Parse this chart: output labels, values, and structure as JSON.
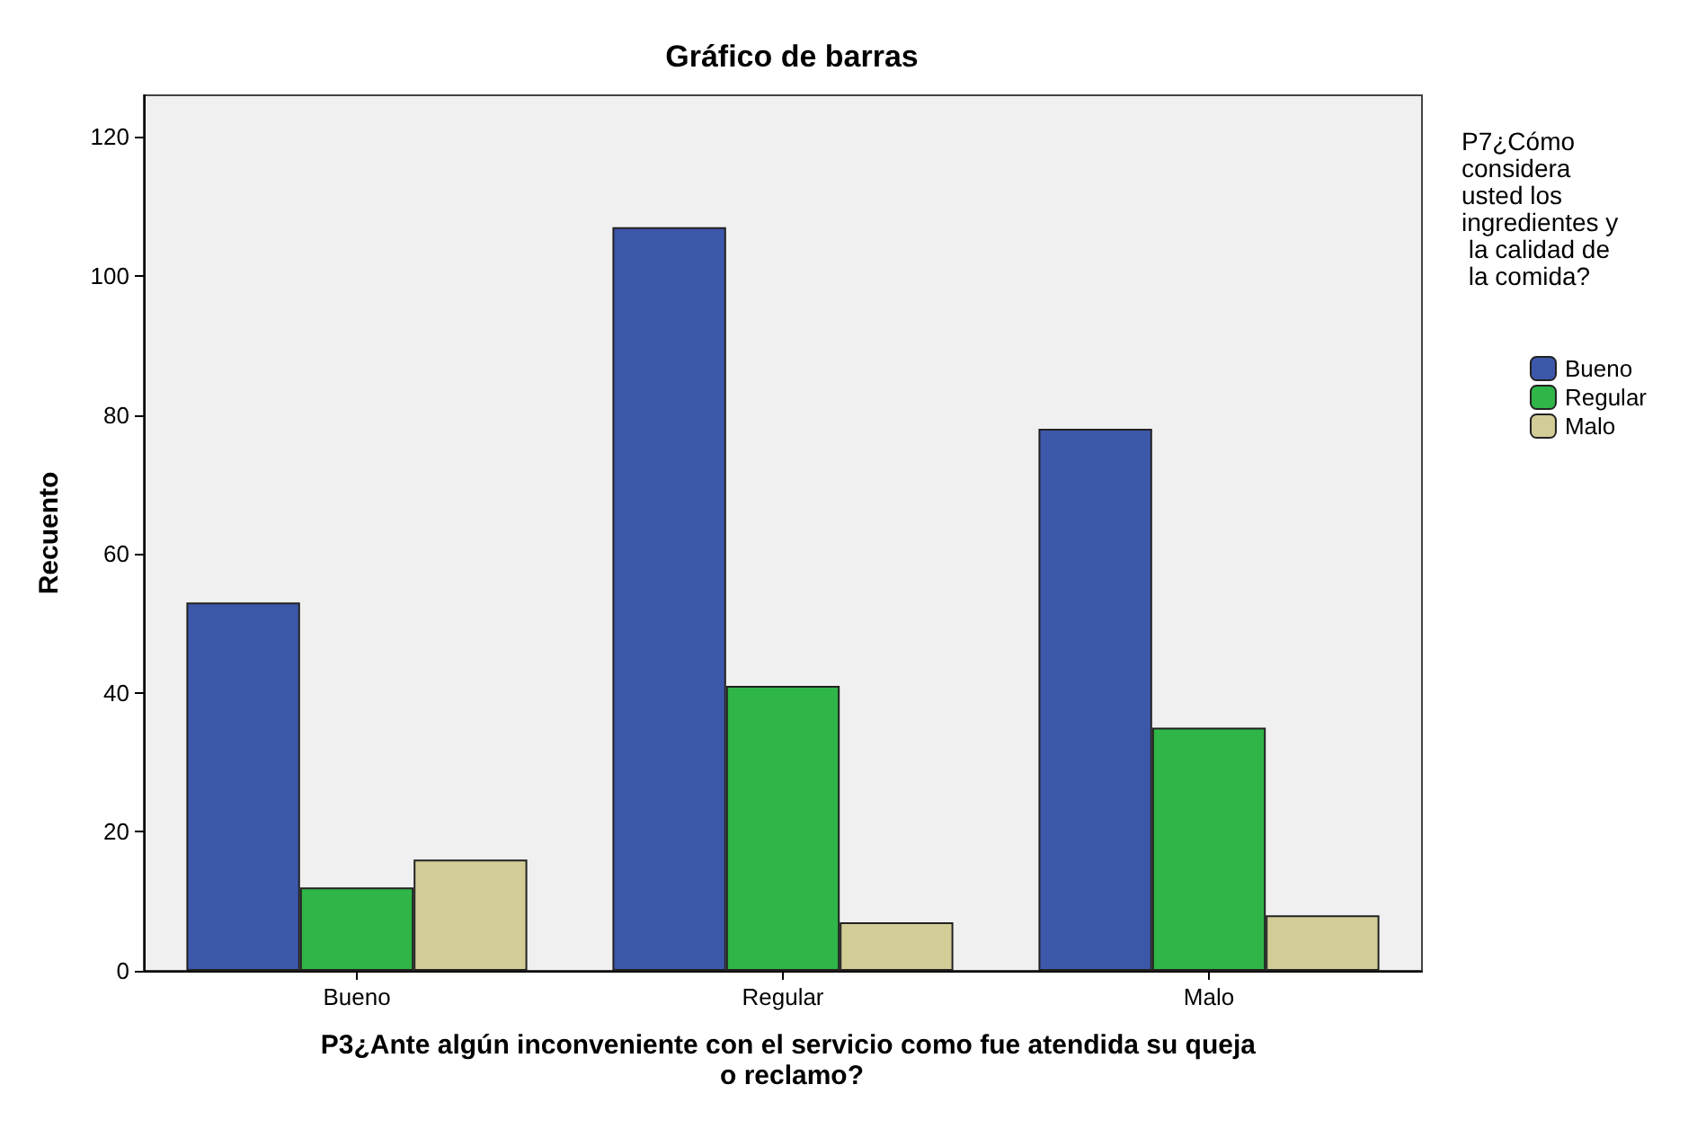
{
  "chart_data": {
    "type": "bar",
    "title": "Gráfico de barras",
    "xlabel": "P3¿Ante algún inconveniente con el servicio como fue atendida su queja o reclamo?",
    "ylabel": "Recuento",
    "legend_title": "P7¿Cómo considera usted los ingredientes y la calidad de la comida?",
    "categories": [
      "Bueno",
      "Regular",
      "Malo"
    ],
    "series": [
      {
        "name": "Bueno",
        "color": "#3d57aa",
        "values": [
          53,
          107,
          78
        ]
      },
      {
        "name": "Regular",
        "color": "#2fb548",
        "values": [
          12,
          41,
          35
        ]
      },
      {
        "name": "Malo",
        "color": "#d2cc96",
        "values": [
          16,
          7,
          8
        ]
      }
    ],
    "ylim": [
      0,
      126
    ],
    "yticks": [
      0,
      20,
      40,
      60,
      80,
      100,
      120
    ],
    "grid": false,
    "legend": "right"
  }
}
